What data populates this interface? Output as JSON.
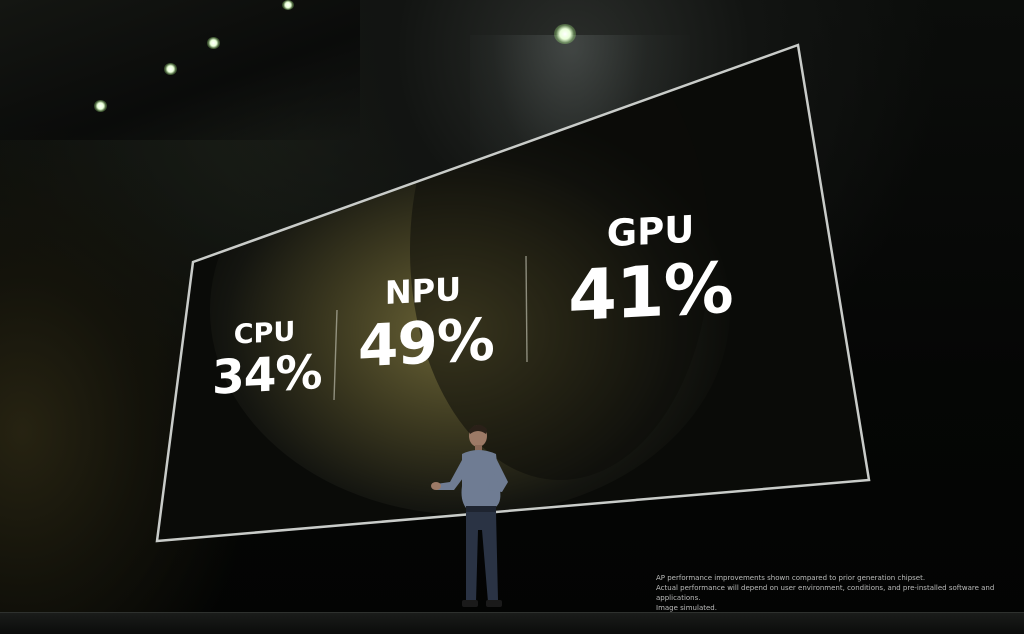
{
  "screen": {
    "metrics": [
      {
        "label": "CPU",
        "value": "34%"
      },
      {
        "label": "NPU",
        "value": "49%"
      },
      {
        "label": "GPU",
        "value": "41%"
      }
    ],
    "disclaimer": [
      "AP performance improvements shown compared to prior generation chipset.",
      "Actual performance will depend on user environment, conditions, and pre-installed software and applications.",
      "Image simulated."
    ]
  },
  "colors": {
    "text": "#ffffff",
    "screen_bg": "#0a0b08",
    "screen_glow": "#6b6436",
    "frame": "#c9ccc9"
  }
}
